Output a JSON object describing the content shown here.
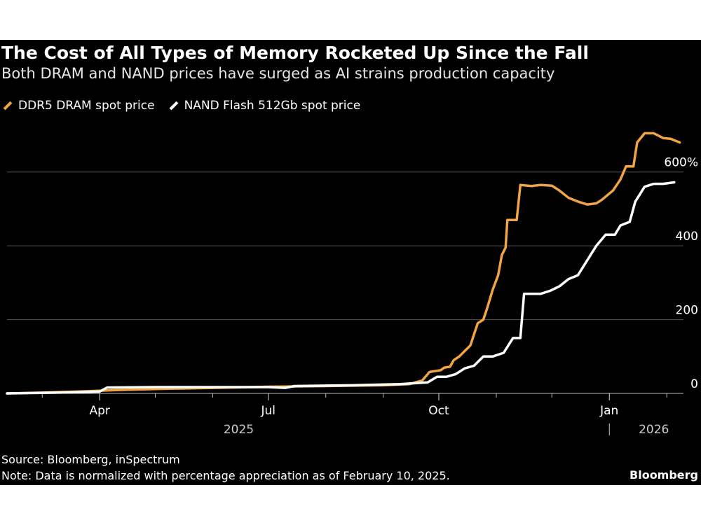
{
  "title": "The Cost of All Types of Memory Rocketed Up Since the Fall",
  "subtitle": "Both DRAM and NAND prices have surged as AI strains production capacity",
  "source": "Source: Bloomberg, inSpectrum",
  "note": "Note: Data is normalized with percentage appreciation as of February 10, 2025.",
  "brand": "Bloomberg",
  "colors": {
    "background": "#000000",
    "dram": "#f2a444",
    "nand": "#ffffff",
    "grid": "#555555"
  },
  "chart_data": {
    "type": "line",
    "title": "The Cost of All Types of Memory Rocketed Up Since the Fall",
    "subtitle": "Both DRAM and NAND prices have surged as AI strains production capacity",
    "xlabel": "",
    "ylabel": "",
    "x_range": [
      "2025-02-10",
      "2026-02-10"
    ],
    "ylim": [
      0,
      700
    ],
    "y_ticks": [
      {
        "value": 0,
        "label": "0"
      },
      {
        "value": 200,
        "label": "200"
      },
      {
        "value": 400,
        "label": "400"
      },
      {
        "value": 600,
        "label": "600%"
      }
    ],
    "x_ticks": [
      {
        "date": "2025-04-01",
        "label": "Apr"
      },
      {
        "date": "2025-07-01",
        "label": "Jul"
      },
      {
        "date": "2025-10-01",
        "label": "Oct"
      },
      {
        "date": "2026-01-01",
        "label": "Jan"
      }
    ],
    "minor_ticks": [
      "2025-03-01",
      "2025-05-01",
      "2025-06-01",
      "2025-08-01",
      "2025-09-01",
      "2025-11-01",
      "2025-12-01",
      "2026-02-01"
    ],
    "year_labels": [
      {
        "date": "2025-06-15",
        "label": "2025"
      },
      {
        "date": "2026-01-25",
        "label": "2026"
      }
    ],
    "year_divider": "2026-01-01",
    "grid": true,
    "legend_position": "top-left",
    "series": [
      {
        "name": "DDR5 DRAM spot price",
        "color": "#f2a444",
        "points": [
          [
            "2025-02-10",
            0
          ],
          [
            "2025-03-01",
            2
          ],
          [
            "2025-03-20",
            5
          ],
          [
            "2025-04-10",
            9
          ],
          [
            "2025-05-01",
            12
          ],
          [
            "2025-06-01",
            15
          ],
          [
            "2025-07-01",
            18
          ],
          [
            "2025-08-01",
            20
          ],
          [
            "2025-09-01",
            22
          ],
          [
            "2025-09-15",
            25
          ],
          [
            "2025-09-22",
            35
          ],
          [
            "2025-09-26",
            58
          ],
          [
            "2025-10-02",
            63
          ],
          [
            "2025-10-04",
            70
          ],
          [
            "2025-10-07",
            72
          ],
          [
            "2025-10-09",
            90
          ],
          [
            "2025-10-12",
            100
          ],
          [
            "2025-10-15",
            115
          ],
          [
            "2025-10-18",
            130
          ],
          [
            "2025-10-20",
            160
          ],
          [
            "2025-10-22",
            190
          ],
          [
            "2025-10-25",
            200
          ],
          [
            "2025-10-27",
            230
          ],
          [
            "2025-10-30",
            280
          ],
          [
            "2025-11-02",
            320
          ],
          [
            "2025-11-04",
            375
          ],
          [
            "2025-11-06",
            395
          ],
          [
            "2025-11-07",
            470
          ],
          [
            "2025-11-12",
            470
          ],
          [
            "2025-11-14",
            565
          ],
          [
            "2025-11-20",
            562
          ],
          [
            "2025-11-25",
            565
          ],
          [
            "2025-12-01",
            563
          ],
          [
            "2025-12-05",
            550
          ],
          [
            "2025-12-10",
            530
          ],
          [
            "2025-12-15",
            520
          ],
          [
            "2025-12-20",
            512
          ],
          [
            "2025-12-25",
            515
          ],
          [
            "2025-12-28",
            525
          ],
          [
            "2026-01-03",
            550
          ],
          [
            "2026-01-07",
            580
          ],
          [
            "2026-01-10",
            615
          ],
          [
            "2026-01-14",
            615
          ],
          [
            "2026-01-16",
            680
          ],
          [
            "2026-01-20",
            705
          ],
          [
            "2026-01-25",
            705
          ],
          [
            "2026-01-30",
            692
          ],
          [
            "2026-02-03",
            690
          ],
          [
            "2026-02-08",
            680
          ]
        ]
      },
      {
        "name": "NAND Flash 512Gb spot price",
        "color": "#ffffff",
        "points": [
          [
            "2025-02-10",
            0
          ],
          [
            "2025-03-10",
            2
          ],
          [
            "2025-04-01",
            5
          ],
          [
            "2025-04-05",
            16
          ],
          [
            "2025-05-01",
            17
          ],
          [
            "2025-06-01",
            17
          ],
          [
            "2025-07-01",
            17
          ],
          [
            "2025-07-10",
            15
          ],
          [
            "2025-07-15",
            20
          ],
          [
            "2025-08-15",
            22
          ],
          [
            "2025-09-10",
            25
          ],
          [
            "2025-09-25",
            30
          ],
          [
            "2025-09-30",
            45
          ],
          [
            "2025-10-05",
            45
          ],
          [
            "2025-10-10",
            52
          ],
          [
            "2025-10-15",
            68
          ],
          [
            "2025-10-20",
            75
          ],
          [
            "2025-10-25",
            100
          ],
          [
            "2025-10-30",
            100
          ],
          [
            "2025-11-05",
            110
          ],
          [
            "2025-11-10",
            150
          ],
          [
            "2025-11-14",
            150
          ],
          [
            "2025-11-16",
            270
          ],
          [
            "2025-11-25",
            270
          ],
          [
            "2025-11-30",
            278
          ],
          [
            "2025-12-05",
            290
          ],
          [
            "2025-12-10",
            310
          ],
          [
            "2025-12-15",
            320
          ],
          [
            "2025-12-20",
            360
          ],
          [
            "2025-12-25",
            400
          ],
          [
            "2025-12-30",
            430
          ],
          [
            "2026-01-04",
            430
          ],
          [
            "2026-01-07",
            455
          ],
          [
            "2026-01-12",
            465
          ],
          [
            "2026-01-15",
            520
          ],
          [
            "2026-01-20",
            560
          ],
          [
            "2026-01-25",
            568
          ],
          [
            "2026-01-30",
            568
          ],
          [
            "2026-02-05",
            572
          ]
        ]
      }
    ]
  }
}
